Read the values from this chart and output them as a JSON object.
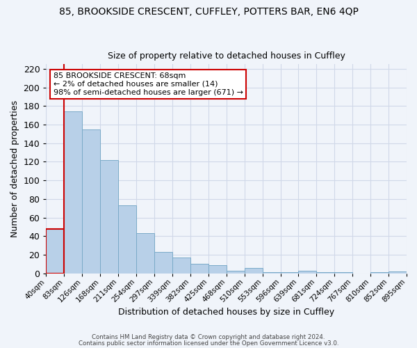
{
  "title": "85, BROOKSIDE CRESCENT, CUFFLEY, POTTERS BAR, EN6 4QP",
  "subtitle": "Size of property relative to detached houses in Cuffley",
  "xlabel": "Distribution of detached houses by size in Cuffley",
  "ylabel": "Number of detached properties",
  "bar_values": [
    48,
    174,
    155,
    122,
    73,
    43,
    23,
    17,
    10,
    9,
    3,
    6,
    1,
    1,
    3,
    1,
    1,
    0,
    1,
    2
  ],
  "bar_labels": [
    "40sqm",
    "83sqm",
    "126sqm",
    "168sqm",
    "211sqm",
    "254sqm",
    "297sqm",
    "339sqm",
    "382sqm",
    "425sqm",
    "468sqm",
    "510sqm",
    "553sqm",
    "596sqm",
    "639sqm",
    "681sqm",
    "724sqm",
    "767sqm",
    "810sqm",
    "852sqm",
    "895sqm"
  ],
  "bar_color": "#b8d0e8",
  "bar_edge_color": "#7aaac8",
  "highlight_color": "#cc0000",
  "annotation_text": "85 BROOKSIDE CRESCENT: 68sqm\n← 2% of detached houses are smaller (14)\n98% of semi-detached houses are larger (671) →",
  "annotation_box_color": "#ffffff",
  "annotation_border_color": "#cc0000",
  "ylim": [
    0,
    225
  ],
  "yticks": [
    0,
    20,
    40,
    60,
    80,
    100,
    120,
    140,
    160,
    180,
    200,
    220
  ],
  "grid_color": "#d0d8e8",
  "background_color": "#f0f4fa",
  "footer_line1": "Contains HM Land Registry data © Crown copyright and database right 2024.",
  "footer_line2": "Contains public sector information licensed under the Open Government Licence v3.0.",
  "title_fontsize": 10,
  "subtitle_fontsize": 9
}
